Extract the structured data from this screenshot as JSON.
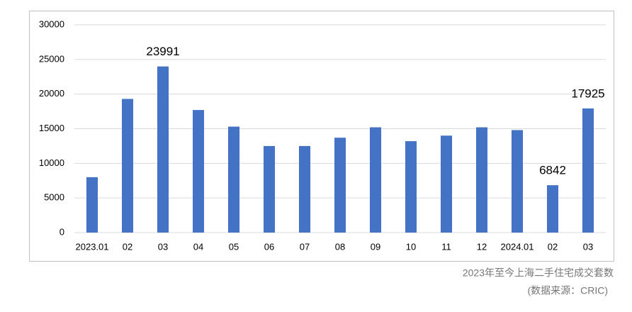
{
  "chart_data": {
    "type": "bar",
    "caption": "2023年至今上海二手住宅成交套数",
    "source": "(数据来源：CRIC)",
    "categories": [
      "2023.01",
      "02",
      "03",
      "04",
      "05",
      "06",
      "07",
      "08",
      "09",
      "10",
      "11",
      "12",
      "2024.01",
      "02",
      "03"
    ],
    "values": [
      8000,
      19300,
      23991,
      17700,
      15300,
      12500,
      12500,
      13700,
      15200,
      13200,
      14000,
      15200,
      14800,
      6842,
      17925
    ],
    "color": "#4472c4",
    "ylim": [
      0,
      30000
    ],
    "yticks": [
      0,
      5000,
      10000,
      15000,
      20000,
      25000,
      30000
    ],
    "grid": true
  }
}
